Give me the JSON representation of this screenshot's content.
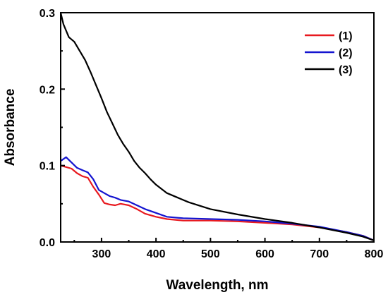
{
  "chart_data": {
    "type": "line",
    "title": "",
    "xlabel": "Wavelength, nm",
    "ylabel": "Absorbance",
    "xlim": [
      225,
      800
    ],
    "ylim": [
      0,
      0.3
    ],
    "xticks": [
      300,
      400,
      500,
      600,
      700,
      800
    ],
    "xtick_labels": [
      "300",
      "400",
      "500",
      "600",
      "700",
      "800"
    ],
    "yticks": [
      0,
      0.1,
      0.2,
      0.3
    ],
    "ytick_labels": [
      "0.0",
      "0.1",
      "0.2",
      "0.3"
    ],
    "grid": false,
    "legend_position": "top-right",
    "series": [
      {
        "name": "(1)",
        "color": "#e8191f",
        "x": [
          225,
          235,
          245,
          255,
          265,
          275,
          285,
          295,
          305,
          315,
          325,
          335,
          350,
          365,
          380,
          400,
          420,
          450,
          500,
          550,
          600,
          650,
          700,
          750,
          780,
          800
        ],
        "y": [
          0.1,
          0.098,
          0.096,
          0.09,
          0.086,
          0.084,
          0.072,
          0.062,
          0.051,
          0.049,
          0.048,
          0.05,
          0.048,
          0.043,
          0.037,
          0.033,
          0.03,
          0.028,
          0.028,
          0.027,
          0.025,
          0.023,
          0.019,
          0.013,
          0.008,
          0.002
        ]
      },
      {
        "name": "(2)",
        "color": "#1414d0",
        "x": [
          225,
          235,
          245,
          255,
          265,
          275,
          285,
          295,
          305,
          315,
          325,
          335,
          350,
          365,
          380,
          400,
          420,
          450,
          500,
          550,
          600,
          650,
          700,
          750,
          780,
          800
        ],
        "y": [
          0.106,
          0.111,
          0.104,
          0.097,
          0.094,
          0.091,
          0.082,
          0.068,
          0.064,
          0.06,
          0.058,
          0.055,
          0.053,
          0.048,
          0.043,
          0.038,
          0.033,
          0.031,
          0.03,
          0.029,
          0.027,
          0.024,
          0.02,
          0.013,
          0.008,
          0.002
        ]
      },
      {
        "name": "(3)",
        "color": "#000000",
        "x": [
          225,
          230,
          240,
          250,
          260,
          270,
          280,
          290,
          300,
          310,
          320,
          330,
          340,
          350,
          360,
          370,
          380,
          390,
          400,
          420,
          440,
          460,
          500,
          550,
          600,
          650,
          700,
          750,
          780,
          800
        ],
        "y": [
          0.3,
          0.285,
          0.268,
          0.262,
          0.25,
          0.238,
          0.222,
          0.205,
          0.188,
          0.17,
          0.155,
          0.14,
          0.128,
          0.118,
          0.106,
          0.097,
          0.09,
          0.082,
          0.075,
          0.064,
          0.058,
          0.052,
          0.043,
          0.036,
          0.03,
          0.025,
          0.019,
          0.012,
          0.007,
          0.002
        ]
      }
    ]
  }
}
